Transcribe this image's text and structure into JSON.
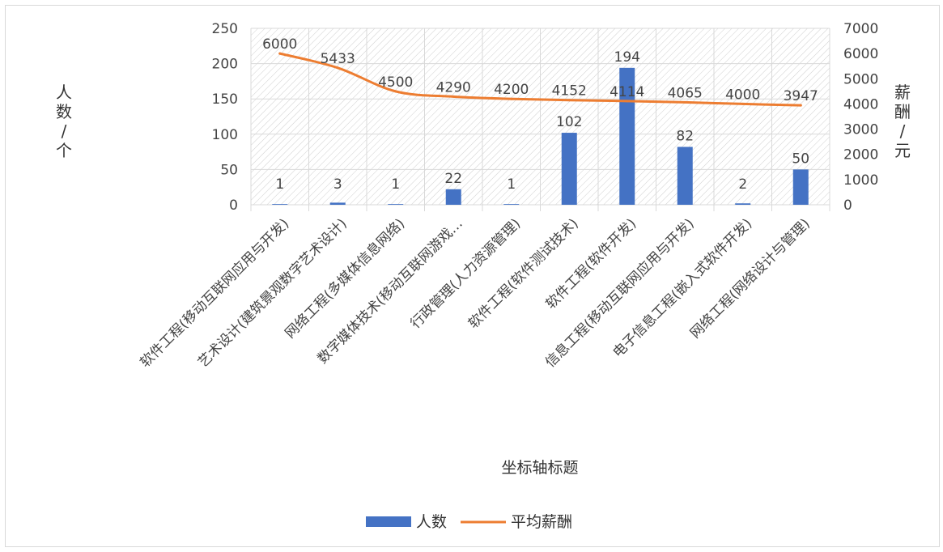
{
  "chart_data": {
    "type": "bar+line",
    "title": "",
    "categories": [
      "软件工程(移动互联网应用与开发)",
      "艺术设计(建筑景观数字艺术设计)",
      "网络工程(多媒体信息网络)",
      "数字媒体技术(移动互联网游戏…",
      "行政管理(人力资源管理)",
      "软件工程(软件测试技术)",
      "软件工程(软件开发)",
      "信息工程(移动互联网应用与开发)",
      "电子信息工程(嵌入式软件开发)",
      "网络工程(网络设计与管理)"
    ],
    "series": [
      {
        "name": "人数",
        "type": "bar",
        "axis": "left",
        "color": "#4472c4",
        "values": [
          1,
          3,
          1,
          22,
          1,
          102,
          194,
          82,
          2,
          50
        ]
      },
      {
        "name": "平均薪酬",
        "type": "line",
        "axis": "right",
        "color": "#ed7d31",
        "values": [
          6000,
          5433,
          4500,
          4290,
          4200,
          4152,
          4114,
          4065,
          4000,
          3947
        ]
      }
    ],
    "xlabel": "坐标轴标题",
    "ylabel_left": "人数/个",
    "ylabel_right": "薪酬/元",
    "ylim_left": [
      0,
      250
    ],
    "yticks_left": [
      "0",
      "50",
      "100",
      "150",
      "200",
      "250"
    ],
    "ylim_right": [
      0,
      7000
    ],
    "yticks_right": [
      "0",
      "1000",
      "2000",
      "3000",
      "4000",
      "5000",
      "6000",
      "7000"
    ],
    "grid": true,
    "legend_position": "bottom"
  }
}
